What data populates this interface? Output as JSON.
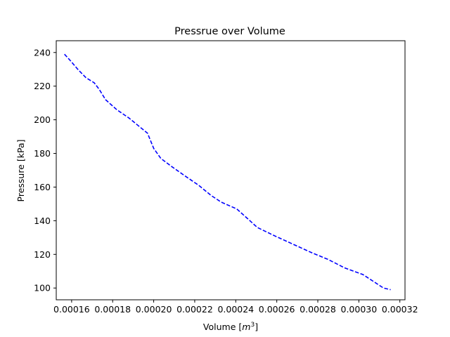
{
  "chart_data": {
    "type": "line",
    "title": "Pressrue over Volume",
    "xlabel": "Volume [m³]",
    "xlabel_base": "Volume [",
    "xlabel_unit": "m",
    "xlabel_exp": "3",
    "xlabel_close": "]",
    "ylabel": "Pressure [kPa]",
    "xlim": [
      0.0001525,
      0.0003225
    ],
    "ylim": [
      93,
      247
    ],
    "x_ticks": [
      0.00016,
      0.00018,
      0.0002,
      0.00022,
      0.00024,
      0.00026,
      0.00028,
      0.0003,
      0.00032
    ],
    "x_tick_labels": [
      "0.00016",
      "0.00018",
      "0.00020",
      "0.00022",
      "0.00024",
      "0.00026",
      "0.00028",
      "0.00030",
      "0.00032"
    ],
    "y_ticks": [
      100,
      120,
      140,
      160,
      180,
      200,
      220,
      240
    ],
    "y_tick_labels": [
      "100",
      "120",
      "140",
      "160",
      "180",
      "200",
      "220",
      "240"
    ],
    "grid": false,
    "legend": "none",
    "series": [
      {
        "color": "#0000ff",
        "linestyle": "dashed",
        "x": [
          0.0001565,
          0.0001595,
          0.000163,
          0.000167,
          0.000171,
          0.0001735,
          0.0001765,
          0.000182,
          0.000188,
          0.000192,
          0.000197,
          0.0002,
          0.0002035,
          0.000209,
          0.000216,
          0.000222,
          0.000228,
          0.000233,
          0.0002405,
          0.000246,
          0.0002505,
          0.000259,
          0.000268,
          0.000277,
          0.000285,
          0.000293,
          0.000302,
          0.000307,
          0.000312,
          0.0003155
        ],
        "y": [
          239,
          235,
          230,
          225,
          222,
          218,
          212,
          206,
          201,
          197,
          192,
          183,
          177,
          172,
          166,
          161,
          155,
          151,
          147,
          141,
          136,
          131,
          126,
          121,
          117,
          112,
          108,
          104,
          100,
          99
        ]
      }
    ]
  }
}
